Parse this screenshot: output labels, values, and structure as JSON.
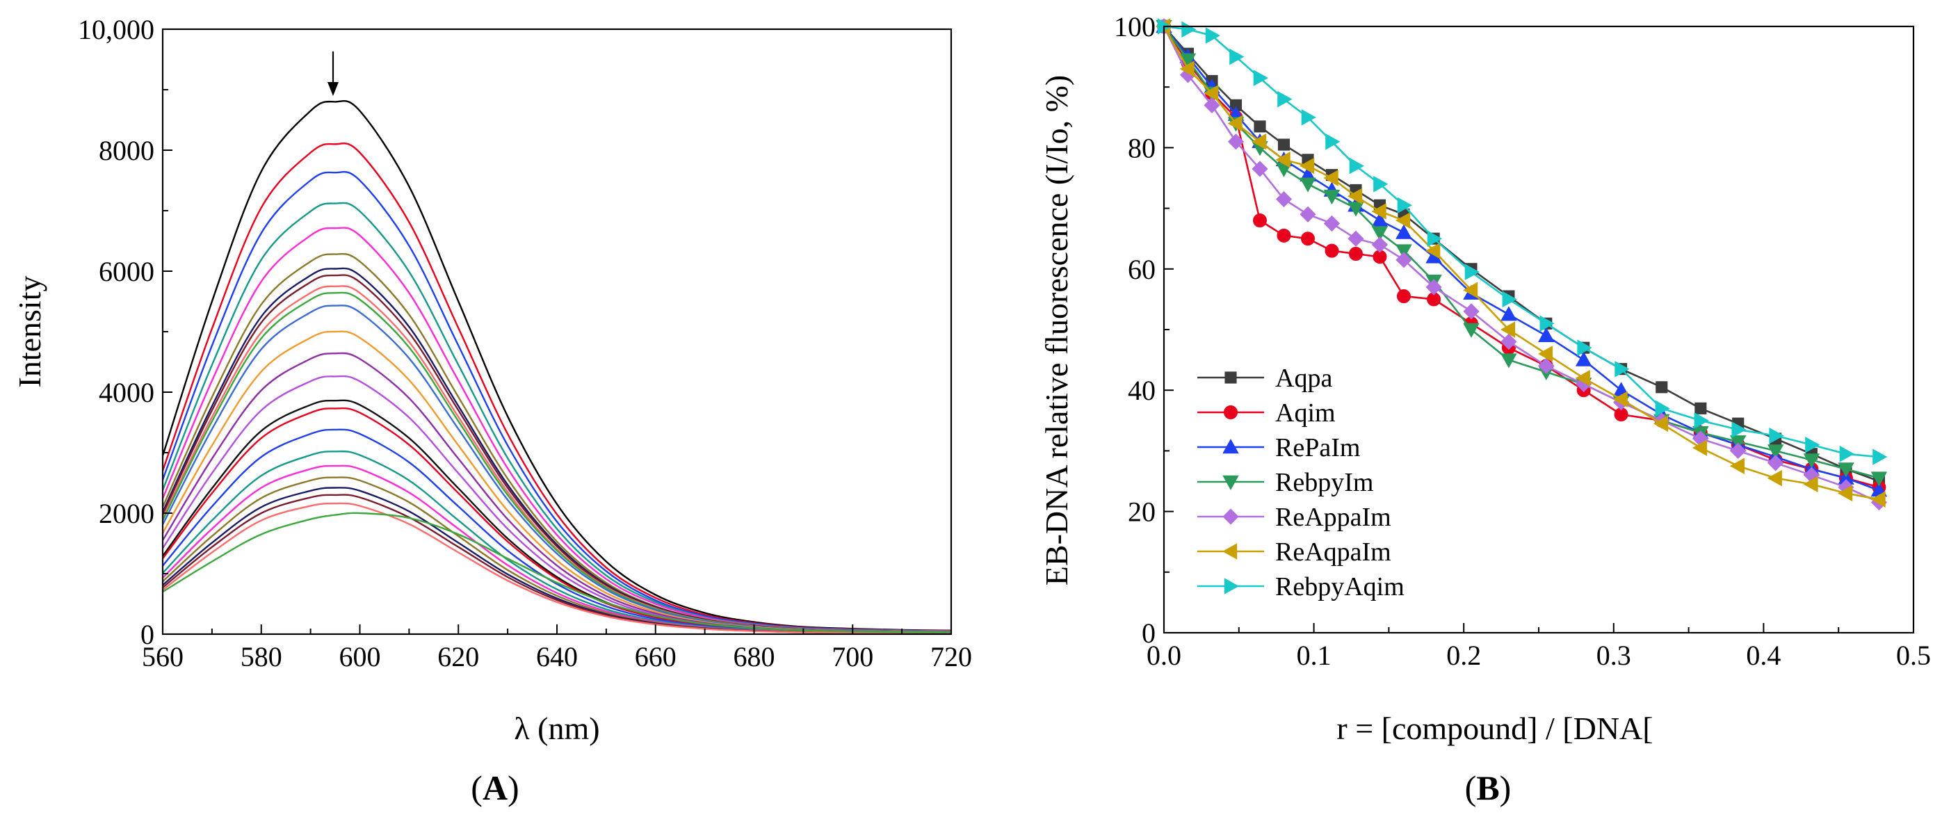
{
  "chart_data": [
    {
      "type": "line",
      "panel_label": "A",
      "title": "",
      "xlabel": "λ (nm)",
      "ylabel": "Intensity",
      "xlim": [
        560,
        720
      ],
      "ylim": [
        0,
        10000
      ],
      "xticks": [
        "560",
        "580",
        "600",
        "620",
        "640",
        "660",
        "680",
        "700",
        "720"
      ],
      "yticks": [
        "0",
        "2000",
        "4000",
        "6000",
        "8000",
        "10,000"
      ],
      "annotation": "down-arrow at λ≈595 nm indicating decreasing intensity",
      "curve_model": "emission spectra sampled at x; series values are intensities in data units",
      "x": [
        560,
        570,
        580,
        590,
        595,
        600,
        610,
        620,
        630,
        640,
        650,
        660,
        670,
        680,
        690,
        700,
        710,
        720
      ],
      "series": [
        {
          "name": "s1",
          "color": "#000000",
          "values": [
            2950,
            5500,
            7650,
            8650,
            8800,
            8650,
            7400,
            5500,
            3600,
            2150,
            1200,
            650,
            350,
            200,
            120,
            90,
            70,
            60
          ]
        },
        {
          "name": "s2",
          "color": "#e8001c",
          "values": [
            2700,
            5050,
            7050,
            7960,
            8100,
            7960,
            6810,
            5060,
            3310,
            1980,
            1100,
            600,
            320,
            184,
            110,
            83,
            64,
            55
          ]
        },
        {
          "name": "s3",
          "color": "#1f3ff2",
          "values": [
            2550,
            4770,
            6630,
            7500,
            7630,
            7500,
            6420,
            4770,
            3120,
            1860,
            1040,
            560,
            300,
            173,
            104,
            78,
            61,
            52
          ]
        },
        {
          "name": "s4",
          "color": "#15998a",
          "values": [
            2380,
            4450,
            6190,
            6990,
            7120,
            6990,
            5990,
            4450,
            2910,
            1740,
            970,
            530,
            280,
            162,
            97,
            73,
            57,
            49
          ]
        },
        {
          "name": "s5",
          "color": "#ff2bd6",
          "values": [
            2240,
            4190,
            5830,
            6590,
            6710,
            6590,
            5640,
            4190,
            2740,
            1640,
            910,
            500,
            270,
            152,
            91,
            69,
            53,
            46
          ]
        },
        {
          "name": "s6",
          "color": "#8c7a2a",
          "values": [
            2100,
            3920,
            5450,
            6160,
            6280,
            6160,
            5280,
            3920,
            2570,
            1530,
            850,
            460,
            250,
            143,
            86,
            64,
            50,
            43
          ]
        },
        {
          "name": "s7",
          "color": "#1a1a66",
          "values": [
            2020,
            3770,
            5250,
            5930,
            6040,
            5930,
            5080,
            3770,
            2470,
            1480,
            820,
            450,
            240,
            137,
            82,
            62,
            48,
            41
          ]
        },
        {
          "name": "s8",
          "color": "#7a1b2e",
          "values": [
            1980,
            3700,
            5150,
            5820,
            5930,
            5820,
            4980,
            3700,
            2420,
            1450,
            800,
            440,
            235,
            135,
            81,
            61,
            47,
            40
          ]
        },
        {
          "name": "s9",
          "color": "#ff6a6a",
          "values": [
            1920,
            3590,
            4990,
            5640,
            5750,
            5640,
            4830,
            3590,
            2350,
            1400,
            780,
            425,
            228,
            131,
            78,
            59,
            46,
            39
          ]
        },
        {
          "name": "s10",
          "color": "#3aa83a",
          "values": [
            1880,
            3520,
            4890,
            5530,
            5640,
            5530,
            4740,
            3520,
            2300,
            1380,
            765,
            416,
            223,
            128,
            77,
            58,
            45,
            38
          ]
        },
        {
          "name": "s11",
          "color": "#3b6bd6",
          "values": [
            1810,
            3390,
            4710,
            5320,
            5430,
            5320,
            4560,
            3390,
            2220,
            1330,
            735,
            400,
            215,
            124,
            74,
            56,
            43,
            37
          ]
        },
        {
          "name": "s12",
          "color": "#f29a2e",
          "values": [
            1670,
            3120,
            4340,
            4900,
            5000,
            4900,
            4200,
            3120,
            2040,
            1220,
            680,
            370,
            198,
            114,
            68,
            51,
            40,
            34
          ]
        },
        {
          "name": "s13",
          "color": "#8e2fa8",
          "values": [
            1550,
            2900,
            4030,
            4550,
            4640,
            4550,
            3900,
            2900,
            1900,
            1135,
            630,
            343,
            184,
            106,
            63,
            48,
            37,
            32
          ]
        },
        {
          "name": "s14",
          "color": "#b44fe0",
          "values": [
            1420,
            2660,
            3700,
            4180,
            4260,
            4180,
            3580,
            2660,
            1740,
            1040,
            580,
            315,
            169,
            97,
            58,
            44,
            34,
            29
          ]
        },
        {
          "name": "s15",
          "color": "#111111",
          "values": [
            1290,
            2410,
            3360,
            3790,
            3860,
            3790,
            3240,
            2410,
            1580,
            945,
            525,
            286,
            153,
            88,
            53,
            40,
            31,
            26
          ]
        },
        {
          "name": "s16",
          "color": "#e8001c",
          "values": [
            1250,
            2330,
            3240,
            3660,
            3730,
            3660,
            3130,
            2330,
            1530,
            915,
            508,
            276,
            148,
            85,
            51,
            38,
            30,
            25
          ]
        },
        {
          "name": "s17",
          "color": "#1f3ff2",
          "values": [
            1130,
            2110,
            2930,
            3310,
            3380,
            3310,
            2840,
            2110,
            1380,
            828,
            460,
            250,
            134,
            77,
            46,
            35,
            27,
            23
          ]
        },
        {
          "name": "s18",
          "color": "#15998a",
          "values": [
            1010,
            1880,
            2620,
            2960,
            3020,
            2960,
            2540,
            1880,
            1230,
            740,
            410,
            223,
            120,
            69,
            41,
            31,
            24,
            21
          ]
        },
        {
          "name": "s19",
          "color": "#ff2bd6",
          "values": [
            930,
            1740,
            2420,
            2730,
            2780,
            2730,
            2340,
            1740,
            1140,
            680,
            378,
            206,
            110,
            63,
            38,
            29,
            22,
            19
          ]
        },
        {
          "name": "s20",
          "color": "#8c7a2a",
          "values": [
            870,
            1620,
            2250,
            2540,
            2590,
            2540,
            2180,
            1620,
            1060,
            634,
            352,
            192,
            103,
            59,
            35,
            27,
            21,
            18
          ]
        },
        {
          "name": "s21",
          "color": "#1a1a66",
          "values": [
            810,
            1510,
            2100,
            2370,
            2420,
            2370,
            2030,
            1510,
            990,
            592,
            329,
            179,
            96,
            55,
            33,
            25,
            19,
            16
          ]
        },
        {
          "name": "s22",
          "color": "#7a1b2e",
          "values": [
            770,
            1440,
            2000,
            2260,
            2300,
            2260,
            1930,
            1440,
            942,
            563,
            313,
            170,
            91,
            52,
            31,
            24,
            18,
            16
          ]
        },
        {
          "name": "s23",
          "color": "#ff6a6a",
          "values": [
            730,
            1350,
            1880,
            2120,
            2160,
            2120,
            1820,
            1350,
            885,
            529,
            294,
            160,
            86,
            49,
            30,
            22,
            17,
            15
          ]
        },
        {
          "name": "s24",
          "color": "#3aa83a",
          "values": [
            700,
            1200,
            1650,
            1900,
            1970,
            2000,
            1920,
            1650,
            1250,
            850,
            520,
            300,
            170,
            100,
            60,
            45,
            35,
            30
          ]
        }
      ]
    },
    {
      "type": "line",
      "panel_label": "B",
      "title": "",
      "xlabel": "r = [compound] / [DNA[",
      "ylabel": "EB-DNA relative fluorescence (I/Io, %)",
      "xlim": [
        0,
        0.5
      ],
      "ylim": [
        0,
        100
      ],
      "xticks": [
        "0.0",
        "0.1",
        "0.2",
        "0.3",
        "0.4",
        "0.5"
      ],
      "yticks": [
        "0",
        "20",
        "40",
        "60",
        "80",
        "100"
      ],
      "legend_position": "lower-left",
      "series": [
        {
          "name": "Aqpa",
          "color": "#3d3d3d",
          "marker": "square",
          "x": [
            0,
            0.016,
            0.032,
            0.048,
            0.064,
            0.08,
            0.096,
            0.112,
            0.128,
            0.144,
            0.16,
            0.18,
            0.205,
            0.23,
            0.255,
            0.28,
            0.305,
            0.332,
            0.358,
            0.383,
            0.408,
            0.432,
            0.455,
            0.477
          ],
          "values": [
            100,
            95.5,
            91,
            87,
            83.5,
            80.5,
            78,
            75.5,
            73,
            70.5,
            69,
            65,
            60,
            55.5,
            51,
            47,
            43.5,
            40.5,
            37,
            34.5,
            32,
            29.5,
            27,
            25
          ]
        },
        {
          "name": "Aqim",
          "color": "#e8001c",
          "marker": "circle",
          "x": [
            0,
            0.016,
            0.032,
            0.048,
            0.064,
            0.08,
            0.096,
            0.112,
            0.128,
            0.144,
            0.16,
            0.18,
            0.205,
            0.23,
            0.255,
            0.28,
            0.305,
            0.332,
            0.358,
            0.383,
            0.408,
            0.432,
            0.455,
            0.477
          ],
          "values": [
            100,
            94,
            89,
            85,
            68,
            65.5,
            65,
            63,
            62.5,
            62,
            55.5,
            55,
            51,
            47,
            44,
            40,
            36,
            35,
            33,
            31,
            28.5,
            27,
            25.5,
            24
          ]
        },
        {
          "name": "RePaIm",
          "color": "#1f3ff2",
          "marker": "triangle-up",
          "x": [
            0,
            0.016,
            0.032,
            0.048,
            0.064,
            0.08,
            0.096,
            0.112,
            0.128,
            0.144,
            0.16,
            0.18,
            0.205,
            0.23,
            0.255,
            0.28,
            0.305,
            0.332,
            0.358,
            0.383,
            0.408,
            0.432,
            0.455,
            0.477
          ],
          "values": [
            100,
            95,
            90,
            85.5,
            81,
            78,
            75.5,
            73,
            70.5,
            68,
            66,
            62,
            56,
            52.5,
            49,
            45,
            40,
            36,
            33,
            31,
            29,
            27,
            25.5,
            23.5
          ]
        },
        {
          "name": "RebpyIm",
          "color": "#2a9a5a",
          "marker": "triangle-down",
          "x": [
            0,
            0.016,
            0.032,
            0.048,
            0.064,
            0.08,
            0.096,
            0.112,
            0.128,
            0.144,
            0.16,
            0.18,
            0.205,
            0.23,
            0.255,
            0.28,
            0.305,
            0.332,
            0.358,
            0.383,
            0.408,
            0.432,
            0.455,
            0.477
          ],
          "values": [
            100,
            94.5,
            89,
            84,
            80,
            76.5,
            74,
            72,
            70,
            66,
            63,
            58,
            50,
            45,
            43,
            41,
            38,
            35,
            33,
            31.5,
            30,
            28.5,
            27,
            25.5
          ]
        },
        {
          "name": "ReAppaIm",
          "color": "#b26fe0",
          "marker": "diamond",
          "x": [
            0,
            0.016,
            0.032,
            0.048,
            0.064,
            0.08,
            0.096,
            0.112,
            0.128,
            0.144,
            0.16,
            0.18,
            0.205,
            0.23,
            0.255,
            0.28,
            0.305,
            0.332,
            0.358,
            0.383,
            0.408,
            0.432,
            0.455,
            0.477
          ],
          "values": [
            100,
            92,
            87,
            81,
            76.5,
            71.5,
            69,
            67.5,
            65,
            64,
            61.5,
            57,
            53,
            48,
            44,
            41,
            38,
            35,
            32,
            30,
            28,
            26,
            24,
            21.5
          ]
        },
        {
          "name": "ReAqpaIm",
          "color": "#c9a000",
          "marker": "triangle-left",
          "x": [
            0,
            0.016,
            0.032,
            0.048,
            0.064,
            0.08,
            0.096,
            0.112,
            0.128,
            0.144,
            0.16,
            0.18,
            0.205,
            0.23,
            0.255,
            0.28,
            0.305,
            0.332,
            0.358,
            0.383,
            0.408,
            0.432,
            0.455,
            0.477
          ],
          "values": [
            100,
            93,
            89,
            84,
            81,
            78,
            77,
            75,
            72,
            69.5,
            68,
            63,
            56.5,
            50,
            46,
            42,
            38.5,
            34.5,
            30.5,
            27.5,
            25.5,
            24.5,
            23,
            22
          ]
        },
        {
          "name": "RebpyAqim",
          "color": "#19c8c8",
          "marker": "triangle-right",
          "x": [
            0,
            0.016,
            0.032,
            0.048,
            0.064,
            0.08,
            0.096,
            0.112,
            0.128,
            0.144,
            0.16,
            0.18,
            0.205,
            0.23,
            0.255,
            0.28,
            0.305,
            0.332,
            0.358,
            0.383,
            0.408,
            0.432,
            0.455,
            0.477
          ],
          "values": [
            100,
            99.5,
            98.5,
            95,
            91.5,
            88,
            85,
            81,
            77,
            74,
            70.5,
            65,
            59.5,
            55,
            51,
            47,
            43.5,
            37,
            35,
            33.5,
            32.5,
            31,
            29.5,
            29
          ]
        }
      ]
    }
  ]
}
